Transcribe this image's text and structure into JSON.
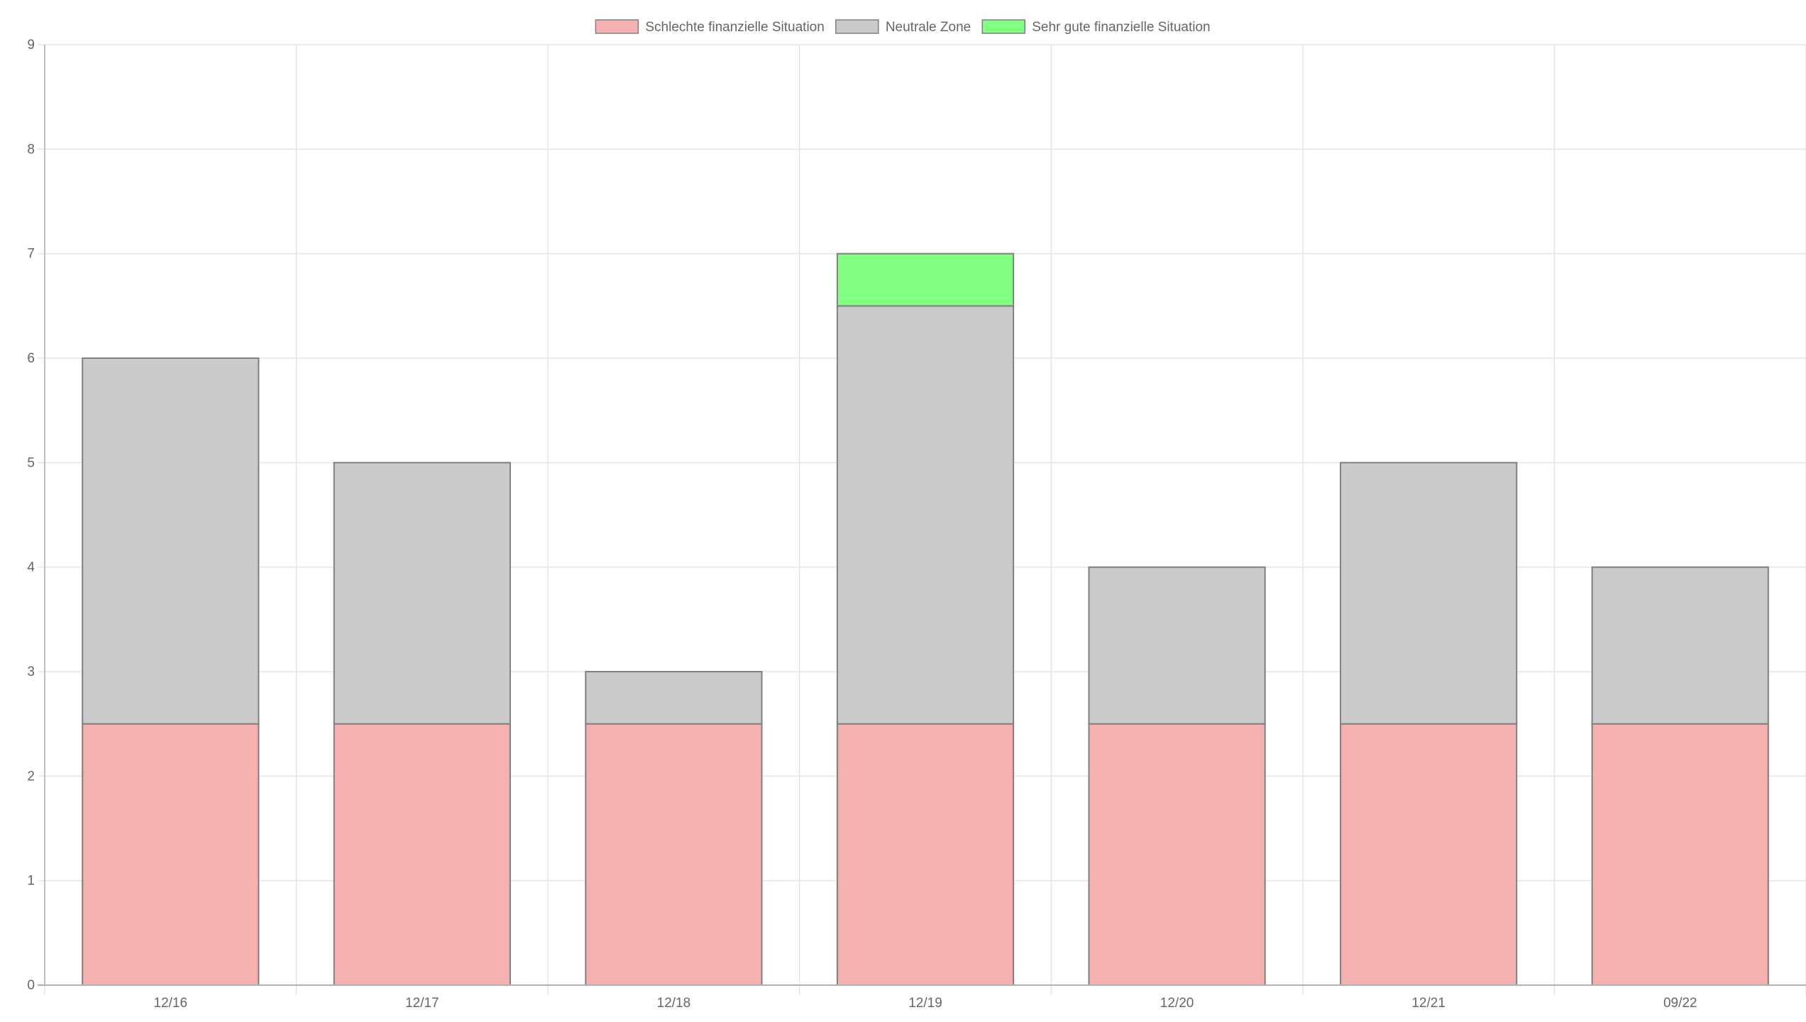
{
  "chart_data": {
    "type": "bar",
    "stacked": true,
    "categories": [
      "12/16",
      "12/17",
      "12/18",
      "12/19",
      "12/20",
      "12/21",
      "09/22"
    ],
    "series": [
      {
        "name": "Schlechte finanzielle Situation",
        "color": "#f5b0b0",
        "values": [
          2.5,
          2.5,
          2.5,
          2.5,
          2.5,
          2.5,
          2.5
        ]
      },
      {
        "name": "Neutrale Zone",
        "color": "#cacaca",
        "values": [
          3.5,
          2.5,
          0.5,
          4.0,
          1.5,
          2.5,
          1.5
        ]
      },
      {
        "name": "Sehr gute finanzielle Situation",
        "color": "#80ff80",
        "values": [
          0,
          0,
          0,
          0.5,
          0,
          0,
          0
        ]
      }
    ],
    "ylim": [
      0,
      9
    ],
    "yticks": [
      "0",
      "1",
      "2",
      "3",
      "4",
      "5",
      "6",
      "7",
      "8",
      "9"
    ],
    "grid": true,
    "legend_position": "top-center",
    "bar_border_color": "#808080",
    "grid_color": "#e5e5e5",
    "axis_color": "#b0b0b0"
  }
}
